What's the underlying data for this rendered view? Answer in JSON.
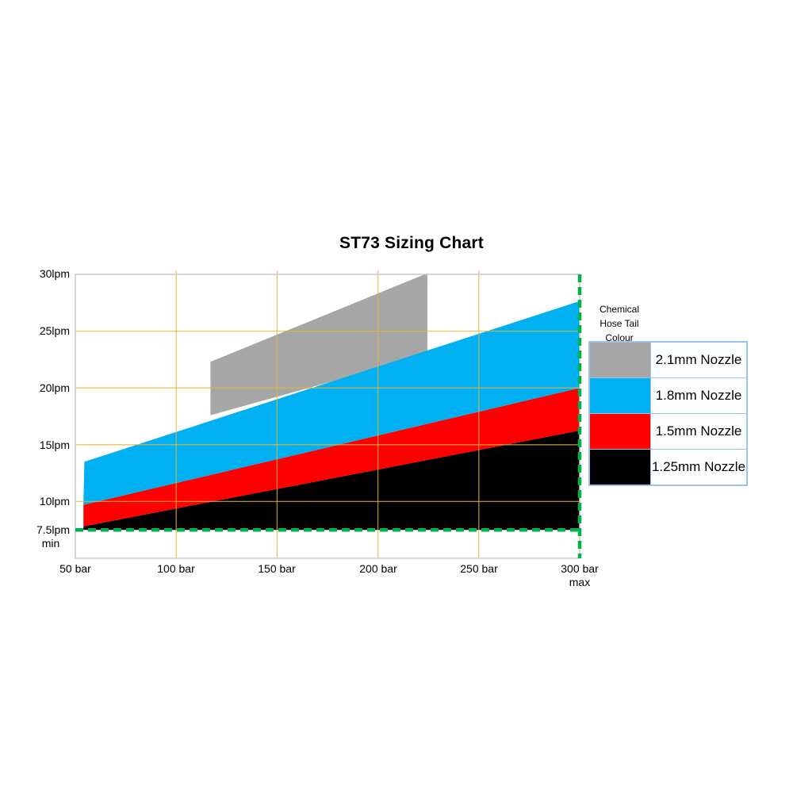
{
  "chart_data": {
    "type": "area",
    "title": "ST73 Sizing Chart",
    "x_axis": {
      "unit": "bar",
      "min": 50,
      "max": 300,
      "tick_values": [
        50,
        100,
        150,
        200,
        250,
        300
      ],
      "tick_labels": [
        "50 bar",
        "100 bar",
        "150 bar",
        "200 bar",
        "250 bar",
        "300 bar"
      ],
      "max_note": "max"
    },
    "y_axis": {
      "unit": "lpm",
      "min": 5,
      "max": 30,
      "tick_values": [
        30,
        25,
        20,
        15,
        10,
        7.5
      ],
      "tick_labels": [
        "30lpm",
        "25lpm",
        "20lpm",
        "15lpm",
        "10lpm",
        "7.5lpm"
      ],
      "min_note": "min"
    },
    "gridlines": {
      "x_values": [
        100,
        150,
        200,
        250
      ],
      "y_values": [
        25,
        20,
        15,
        10
      ],
      "color": "rgba(226,182,58,0.78)"
    },
    "plot_border_color": "#C9C9C9",
    "bands": [
      {
        "name": "2.1mm Nozzle",
        "color": "#A6A6A6",
        "polygon_bar_lpm": [
          [
            117,
            22.3
          ],
          [
            224.5,
            30.1
          ],
          [
            224.5,
            22.9
          ],
          [
            117,
            17.6
          ]
        ]
      },
      {
        "name": "1.25mm Nozzle",
        "color": "#000000",
        "polygon_bar_lpm": [
          [
            54,
            7.8
          ],
          [
            300,
            16.25
          ],
          [
            300,
            7.5
          ],
          [
            54,
            7.5
          ]
        ]
      },
      {
        "name": "1.5mm Nozzle",
        "color": "#FF0000",
        "polygon_bar_lpm": [
          [
            54,
            9.7
          ],
          [
            300,
            20
          ],
          [
            300,
            16.25
          ],
          [
            54,
            7.8
          ]
        ]
      },
      {
        "name": "1.8mm Nozzle",
        "color": "#00B0F0",
        "polygon_bar_lpm": [
          [
            54.5,
            13.5
          ],
          [
            300,
            27.65
          ],
          [
            300,
            20
          ],
          [
            54,
            9.7
          ]
        ]
      }
    ],
    "limit_lines": {
      "min_flow_lpm": 7.5,
      "max_pressure_bar": 300,
      "color": "#00B050",
      "style": "dashed"
    }
  },
  "legend": {
    "header_lines": [
      "Chemical",
      "Hose Tail",
      "Colour"
    ],
    "border_color": "#9DC3E6",
    "rows": [
      {
        "label": "2.1mm Nozzle",
        "color": "#A6A6A6"
      },
      {
        "label": "1.8mm Nozzle",
        "color": "#00B0F0"
      },
      {
        "label": "1.5mm Nozzle",
        "color": "#FF0000"
      },
      {
        "label": "1.25mm Nozzle",
        "color": "#000000"
      }
    ]
  }
}
